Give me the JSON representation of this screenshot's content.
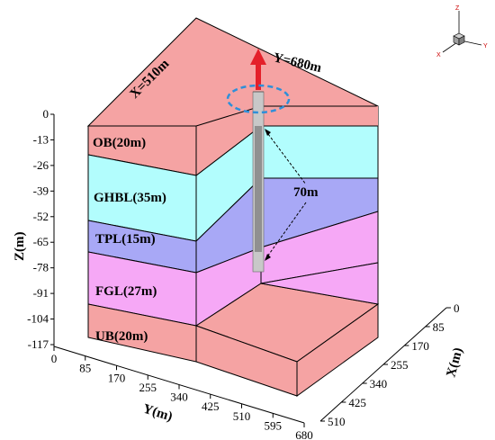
{
  "colors": {
    "ob": "#F5A3A3",
    "ghbl": "#B2FDFD",
    "tpl": "#A8A8F6",
    "fgl": "#F6A8F6",
    "ub": "#F5A3A3",
    "well": "#C8C8C8",
    "arrow": "#E4202A",
    "ellipse": "#2F8FD8"
  },
  "dimensions": {
    "x_label": "X=510m",
    "y_label": "Y=680m",
    "well_depth_label": "70m"
  },
  "layers": [
    {
      "id": "ob",
      "label": "OB(20m)"
    },
    {
      "id": "ghbl",
      "label": "GHBL(35m)"
    },
    {
      "id": "tpl",
      "label": "TPL(15m)"
    },
    {
      "id": "fgl",
      "label": "FGL(27m)"
    },
    {
      "id": "ub",
      "label": "UB(20m)"
    }
  ],
  "axes": {
    "z": {
      "title": "Z(m)",
      "ticks": [
        "0",
        "-13",
        "-26",
        "-39",
        "-52",
        "-65",
        "-78",
        "-91",
        "-104",
        "-117"
      ]
    },
    "y": {
      "title": "Y(m)",
      "ticks": [
        "0",
        "85",
        "170",
        "255",
        "340",
        "425",
        "510",
        "595",
        "680"
      ]
    },
    "x": {
      "title": "X(m)",
      "ticks": [
        "0",
        "85",
        "170",
        "255",
        "340",
        "425",
        "510"
      ]
    }
  },
  "orientation": {
    "z": "Z",
    "y": "Y",
    "x": "X"
  }
}
